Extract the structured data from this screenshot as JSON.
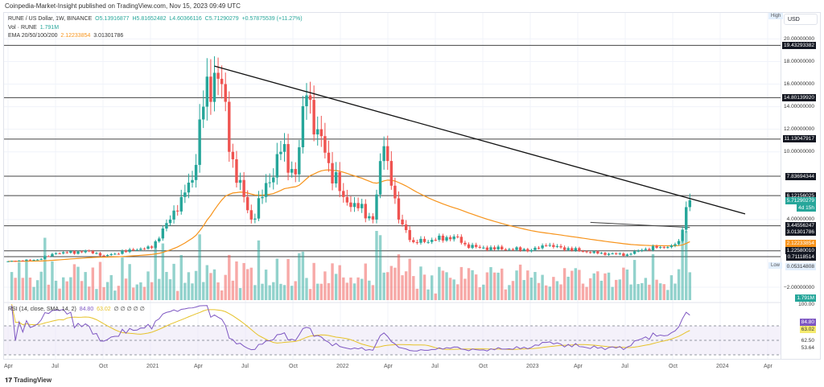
{
  "header": {
    "published": "Coinpedia-Market-Insight published on TradingView.com, Nov 15, 2023 09:49 UTC"
  },
  "legend": {
    "symbol": "RUNE / US Dollar, 1W, BINANCE",
    "open": "O5.13916877",
    "high": "H5.81652482",
    "low": "L4.60366116",
    "close": "C5.71290279",
    "change": "+0.57875539 (+11.27%)",
    "vol_label": "Vol · RUNE",
    "vol_value": "1.791M",
    "ema_label": "EMA 20/50/100/200",
    "ema1": "2.12233854",
    "ema2": "3.01301786",
    "rsi_label": "RSI (14, close, SMA, 14, 2)",
    "rsi_value": "84.80",
    "rsi_sma": "63.02",
    "rsi_extra": "∅ ∅   ∅ ∅ ∅"
  },
  "axis": {
    "currency": "USD",
    "high_tag": "High",
    "low_tag": "Low",
    "ticks": [
      {
        "v": 20,
        "t": "20.00000000"
      },
      {
        "v": 18,
        "t": "18.00000000"
      },
      {
        "v": 16,
        "t": "16.00000000"
      },
      {
        "v": 14,
        "t": "14.00000000"
      },
      {
        "v": 12,
        "t": "12.00000000"
      },
      {
        "v": 10,
        "t": "10.00000000"
      },
      {
        "v": 4,
        "t": "4.00000000"
      },
      {
        "v": -2,
        "t": "−2.00000000"
      }
    ],
    "levels": [
      {
        "v": 19.43293382,
        "t": "19.43293382"
      },
      {
        "v": 14.8013992,
        "t": "14.80139920"
      },
      {
        "v": 11.13047917,
        "t": "11.13047917"
      },
      {
        "v": 7.83694344,
        "t": "7.83694344"
      },
      {
        "v": 6.12156025,
        "t": "6.12156025"
      },
      {
        "v": 3.44556247,
        "t": "3.44556247"
      },
      {
        "v": 1.2258001,
        "t": "1.22580010"
      },
      {
        "v": 0.71118514,
        "t": "0.71118514"
      }
    ],
    "last_price": "5.71290279",
    "countdown": "4d 15h",
    "ema200": "3.01301786",
    "ema50": "2.12233854",
    "low_value": "0.05314808",
    "vol_tag": "1.791M",
    "rsi_ticks": [
      "100.00",
      "62.50",
      "53.64"
    ],
    "rsi_tag": "84.80",
    "rsi_sma_tag": "63.02"
  },
  "time_axis": [
    "Apr",
    "Jul",
    "Oct",
    "2021",
    "Apr",
    "Jul",
    "Oct",
    "2022",
    "Apr",
    "Jul",
    "Oct",
    "2023",
    "Apr",
    "Jul",
    "Oct",
    "2024",
    "Apr"
  ],
  "footer": {
    "brand": "TradingView"
  },
  "colors": {
    "up": "#26a69a",
    "down": "#ef5350",
    "ema50": "#f7931a",
    "rsi": "#7e57c2",
    "rsi_sma": "#e6c229"
  },
  "chart_data": {
    "type": "candlestick",
    "interval": "1W",
    "ylim": [
      -2.5,
      21
    ],
    "keypoints_week_close": [
      [
        0,
        0.3
      ],
      [
        8,
        0.45
      ],
      [
        13,
        1.0
      ],
      [
        22,
        1.2
      ],
      [
        26,
        0.8
      ],
      [
        34,
        1.3
      ],
      [
        39,
        1.5
      ],
      [
        44,
        4
      ],
      [
        47,
        6
      ],
      [
        50,
        7.5
      ],
      [
        53,
        14
      ],
      [
        56,
        17
      ],
      [
        58,
        16
      ],
      [
        60,
        10
      ],
      [
        64,
        6
      ],
      [
        66,
        4
      ],
      [
        69,
        6
      ],
      [
        74,
        10
      ],
      [
        78,
        8
      ],
      [
        81,
        15
      ],
      [
        84,
        12
      ],
      [
        87,
        9
      ],
      [
        91,
        6
      ],
      [
        95,
        5
      ],
      [
        99,
        4
      ],
      [
        102,
        10.5
      ],
      [
        104,
        7
      ],
      [
        106,
        4
      ],
      [
        110,
        2
      ],
      [
        116,
        2.2
      ],
      [
        121,
        2.5
      ],
      [
        124,
        1.8
      ],
      [
        128,
        1.5
      ],
      [
        142,
        1.3
      ],
      [
        146,
        1.7
      ],
      [
        160,
        1.0
      ],
      [
        168,
        0.9
      ],
      [
        172,
        1.3
      ],
      [
        176,
        1.5
      ],
      [
        180,
        1.7
      ],
      [
        182,
        2.1
      ],
      [
        183,
        3.1
      ],
      [
        184,
        5.1
      ],
      [
        185,
        5.71
      ]
    ],
    "trendline": {
      "from": [
        56,
        17.6
      ],
      "to": [
        200,
        4.5
      ]
    }
  }
}
